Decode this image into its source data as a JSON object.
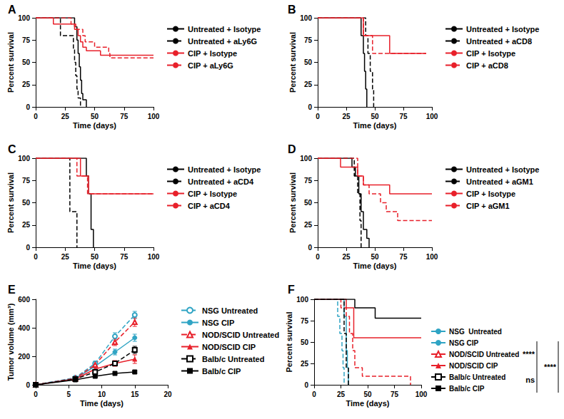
{
  "chart_data": [
    {
      "type": "step",
      "title": "A",
      "xlabel": "Time (days)",
      "ylabel": "Percent survival",
      "xlim": [
        0,
        100
      ],
      "xticks": [
        0,
        25,
        50,
        75,
        100
      ],
      "ylim": [
        0,
        100
      ],
      "yticks": [
        0,
        25,
        50,
        75,
        100
      ],
      "grid": false,
      "legend": "right",
      "series": [
        {
          "name": "Untreated + Isotype",
          "color": "#000000",
          "line_style": "solid",
          "marker": "none",
          "x": [
            0,
            33,
            35,
            36,
            37,
            38,
            39,
            40,
            43
          ],
          "values": [
            100,
            90,
            75,
            60,
            45,
            30,
            15,
            8,
            0
          ]
        },
        {
          "name": "Untreated + aLy6G",
          "color": "#000000",
          "line_style": "dashed",
          "marker": "none",
          "x": [
            0,
            21,
            32,
            33,
            34,
            35,
            36,
            38
          ],
          "values": [
            100,
            80,
            65,
            50,
            35,
            20,
            10,
            0
          ]
        },
        {
          "name": "CIP + Isotype",
          "color": "#e8202a",
          "line_style": "solid",
          "marker": "none",
          "x": [
            0,
            15,
            33,
            36,
            38,
            40,
            43,
            55,
            100
          ],
          "values": [
            100,
            93,
            87,
            80,
            73,
            67,
            63,
            58,
            58
          ]
        },
        {
          "name": "CIP + aLy6G",
          "color": "#e8202a",
          "line_style": "dashed",
          "marker": "none",
          "x": [
            0,
            30,
            34,
            40,
            42,
            50,
            62,
            63,
            100
          ],
          "values": [
            100,
            93,
            87,
            80,
            73,
            67,
            60,
            55,
            55
          ]
        }
      ]
    },
    {
      "type": "step",
      "title": "B",
      "xlabel": "Time (days)",
      "ylabel": "Percent survival",
      "xlim": [
        0,
        100
      ],
      "xticks": [
        0,
        25,
        50,
        75,
        100
      ],
      "ylim": [
        0,
        100
      ],
      "yticks": [
        0,
        25,
        50,
        75,
        100
      ],
      "grid": false,
      "legend": "right",
      "series": [
        {
          "name": "Untreated + Isotype",
          "color": "#000000",
          "line_style": "solid",
          "marker": "none",
          "x": [
            0,
            38,
            40,
            41,
            42,
            43
          ],
          "values": [
            100,
            80,
            60,
            40,
            20,
            0
          ]
        },
        {
          "name": "Untreated + aCD8",
          "color": "#000000",
          "line_style": "dashed",
          "marker": "none",
          "x": [
            0,
            42,
            44,
            46,
            48,
            49
          ],
          "values": [
            100,
            80,
            60,
            40,
            20,
            0
          ]
        },
        {
          "name": "CIP + Isotype",
          "color": "#e8202a",
          "line_style": "solid",
          "marker": "none",
          "x": [
            0,
            40,
            63,
            95
          ],
          "values": [
            100,
            80,
            60,
            60
          ]
        },
        {
          "name": "CIP + aCD8",
          "color": "#e8202a",
          "line_style": "dashed",
          "marker": "none",
          "x": [
            0,
            40,
            48,
            95
          ],
          "values": [
            100,
            80,
            60,
            60
          ]
        }
      ]
    },
    {
      "type": "step",
      "title": "C",
      "xlabel": "Time (days)",
      "ylabel": "Percent survival",
      "xlim": [
        0,
        100
      ],
      "xticks": [
        0,
        25,
        50,
        75,
        100
      ],
      "ylim": [
        0,
        100
      ],
      "yticks": [
        0,
        25,
        50,
        75,
        100
      ],
      "grid": false,
      "legend": "right",
      "series": [
        {
          "name": "Untreated + Isotype",
          "color": "#000000",
          "line_style": "solid",
          "marker": "none",
          "x": [
            0,
            43,
            45,
            47,
            49
          ],
          "values": [
            100,
            80,
            60,
            20,
            0
          ]
        },
        {
          "name": "Untreated + aCD4",
          "color": "#000000",
          "line_style": "dashed",
          "marker": "none",
          "x": [
            0,
            29,
            35
          ],
          "values": [
            100,
            40,
            0
          ]
        },
        {
          "name": "CIP + Isotype",
          "color": "#e8202a",
          "line_style": "solid",
          "marker": "none",
          "x": [
            0,
            38,
            45,
            100
          ],
          "values": [
            100,
            80,
            60,
            60
          ]
        },
        {
          "name": "CIP + aCD4",
          "color": "#e8202a",
          "line_style": "dashed",
          "marker": "none",
          "x": [
            0,
            35,
            44,
            100
          ],
          "values": [
            100,
            80,
            60,
            60
          ]
        }
      ]
    },
    {
      "type": "step",
      "title": "D",
      "xlabel": "Time (days)",
      "ylabel": "Percent survival",
      "xlim": [
        0,
        100
      ],
      "xticks": [
        0,
        25,
        50,
        75,
        100
      ],
      "ylim": [
        0,
        100
      ],
      "yticks": [
        0,
        25,
        50,
        75,
        100
      ],
      "grid": false,
      "legend": "right",
      "series": [
        {
          "name": "Untreated + Isotype",
          "color": "#000000",
          "line_style": "solid",
          "marker": "none",
          "x": [
            0,
            30,
            33,
            36,
            38,
            40,
            43,
            45
          ],
          "values": [
            100,
            90,
            80,
            60,
            40,
            20,
            10,
            0
          ]
        },
        {
          "name": "Untreated + aGM1",
          "color": "#000000",
          "line_style": "dashed",
          "marker": "none",
          "x": [
            0,
            32,
            35,
            37,
            38
          ],
          "values": [
            100,
            80,
            60,
            30,
            0
          ]
        },
        {
          "name": "CIP + Isotype",
          "color": "#e8202a",
          "line_style": "solid",
          "marker": "none",
          "x": [
            0,
            20,
            35,
            40,
            63,
            100
          ],
          "values": [
            100,
            90,
            80,
            70,
            60,
            60
          ]
        },
        {
          "name": "CIP + aGM1",
          "color": "#e8202a",
          "line_style": "dashed",
          "marker": "none",
          "x": [
            0,
            35,
            40,
            45,
            55,
            60,
            70,
            100
          ],
          "values": [
            100,
            80,
            70,
            60,
            50,
            40,
            30,
            30
          ]
        }
      ]
    },
    {
      "type": "line",
      "title": "E",
      "xlabel": "Time (days)",
      "ylabel": "Tumor volume (mm³)",
      "xlim": [
        0,
        20
      ],
      "xticks": [
        0,
        5,
        10,
        15,
        20
      ],
      "ylim": [
        0,
        600
      ],
      "yticks": [
        0,
        200,
        400,
        600
      ],
      "grid": false,
      "legend": "right",
      "series": [
        {
          "name": "NSG Untreated",
          "color": "#2fa4c4",
          "line_style": "dashed",
          "marker": "circle-open",
          "x": [
            0,
            6,
            9,
            12,
            15
          ],
          "values": [
            0,
            50,
            150,
            340,
            490
          ],
          "errors": [
            0,
            5,
            15,
            25,
            25
          ]
        },
        {
          "name": "NSG CIP",
          "color": "#2fa4c4",
          "line_style": "solid",
          "marker": "circle",
          "x": [
            0,
            6,
            9,
            12,
            15
          ],
          "values": [
            0,
            45,
            130,
            230,
            330
          ],
          "errors": [
            0,
            5,
            12,
            20,
            25
          ]
        },
        {
          "name": "NOD/SCID Untreated",
          "color": "#e8202a",
          "line_style": "dashed",
          "marker": "triangle-open",
          "x": [
            0,
            6,
            9,
            12,
            15
          ],
          "values": [
            0,
            45,
            140,
            300,
            440
          ],
          "errors": [
            0,
            5,
            12,
            25,
            30
          ]
        },
        {
          "name": "NOD/SCID CIP",
          "color": "#e8202a",
          "line_style": "solid",
          "marker": "triangle",
          "x": [
            0,
            6,
            9,
            12,
            15
          ],
          "values": [
            0,
            40,
            110,
            150,
            180
          ],
          "errors": [
            0,
            4,
            10,
            20,
            30
          ]
        },
        {
          "name": "Balb/c Untreated",
          "color": "#000000",
          "line_style": "dashed",
          "marker": "square-open",
          "x": [
            0,
            6,
            9,
            12,
            15
          ],
          "values": [
            0,
            40,
            90,
            150,
            245
          ],
          "errors": [
            0,
            4,
            10,
            15,
            25
          ]
        },
        {
          "name": "Balb/c CIP",
          "color": "#000000",
          "line_style": "solid",
          "marker": "square",
          "x": [
            0,
            6,
            9,
            12,
            15
          ],
          "values": [
            0,
            35,
            60,
            80,
            90
          ],
          "errors": [
            0,
            3,
            8,
            10,
            12
          ]
        }
      ]
    },
    {
      "type": "step",
      "title": "F",
      "xlabel": "Time (days)",
      "ylabel": "Percent survival",
      "xlim": [
        0,
        100
      ],
      "xticks": [
        0,
        25,
        50,
        75,
        100
      ],
      "ylim": [
        0,
        100
      ],
      "yticks": [
        0,
        25,
        50,
        75,
        100
      ],
      "grid": false,
      "legend": "right",
      "annotations": [
        "****",
        "ns",
        "****"
      ],
      "series": [
        {
          "name": "NSG  Untreated",
          "color": "#2fa4c4",
          "line_style": "dashed",
          "marker": "none",
          "x": [
            0,
            22,
            24,
            26,
            27,
            28
          ],
          "values": [
            100,
            80,
            60,
            40,
            20,
            0
          ]
        },
        {
          "name": "NSG CIP",
          "color": "#2fa4c4",
          "line_style": "solid",
          "marker": "none",
          "x": [
            0,
            28,
            30,
            31,
            32
          ],
          "values": [
            100,
            80,
            40,
            20,
            0
          ]
        },
        {
          "name": "NOD/SCID Untreated",
          "color": "#e8202a",
          "line_style": "dashed",
          "marker": "none",
          "x": [
            0,
            25,
            30,
            33,
            36,
            38,
            45,
            90
          ],
          "values": [
            100,
            90,
            80,
            60,
            40,
            20,
            10,
            0
          ]
        },
        {
          "name": "NOD/SCID CIP",
          "color": "#e8202a",
          "line_style": "solid",
          "marker": "none",
          "x": [
            0,
            30,
            37,
            100
          ],
          "values": [
            100,
            90,
            55,
            55
          ]
        },
        {
          "name": "Balb/c Untreated",
          "color": "#000000",
          "line_style": "dashed",
          "marker": "none",
          "x": [
            0,
            28,
            30,
            32
          ],
          "values": [
            100,
            60,
            20,
            0
          ]
        },
        {
          "name": "Balb/c CIP",
          "color": "#000000",
          "line_style": "solid",
          "marker": "none",
          "x": [
            0,
            38,
            57,
            100
          ],
          "values": [
            100,
            90,
            78,
            78
          ]
        }
      ]
    }
  ]
}
